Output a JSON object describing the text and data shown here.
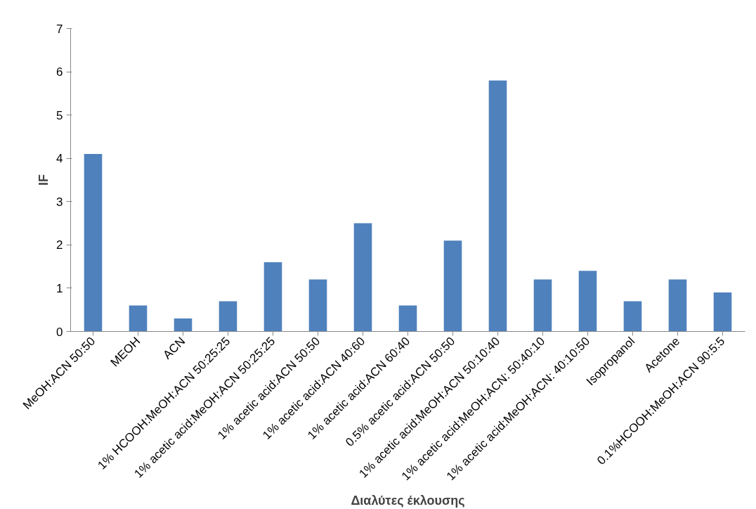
{
  "chart_data": {
    "type": "bar",
    "xlabel": "Διαλύτες έκλουσης",
    "ylabel": "IF",
    "categories": [
      "MeOH:ACN 50:50",
      "MEOH",
      "ACN",
      "1% HCOOH:MeOH:ACN 50:25:25",
      "1% acetic acid:MeOH:ACN 50:25:25",
      "1% acetic acid:ACN 50:50",
      "1% acetic acid:ACN 40:60",
      "1% acetic acid:ACN 60:40",
      "0.5% acetic acid:ACN 50:50",
      "1% acetic acid:MeOH:ACN 50:10:40",
      "1% acetic acid:MeOH:ACN: 50:40:10",
      "1% acetic acid:MeOH:ACN: 40:10:50",
      "Isopropanol",
      "Acetone",
      "0.1%HCOOH:MeOH:ACN 90:5:5"
    ],
    "values": [
      4.1,
      0.6,
      0.3,
      0.7,
      1.6,
      1.2,
      2.5,
      0.6,
      2.1,
      5.8,
      1.2,
      1.4,
      0.7,
      1.2,
      0.9
    ],
    "color": "#4f81bd",
    "ylim": [
      0,
      7
    ],
    "yticks": [
      0,
      1,
      2,
      3,
      4,
      5,
      6,
      7
    ],
    "grid": false
  }
}
